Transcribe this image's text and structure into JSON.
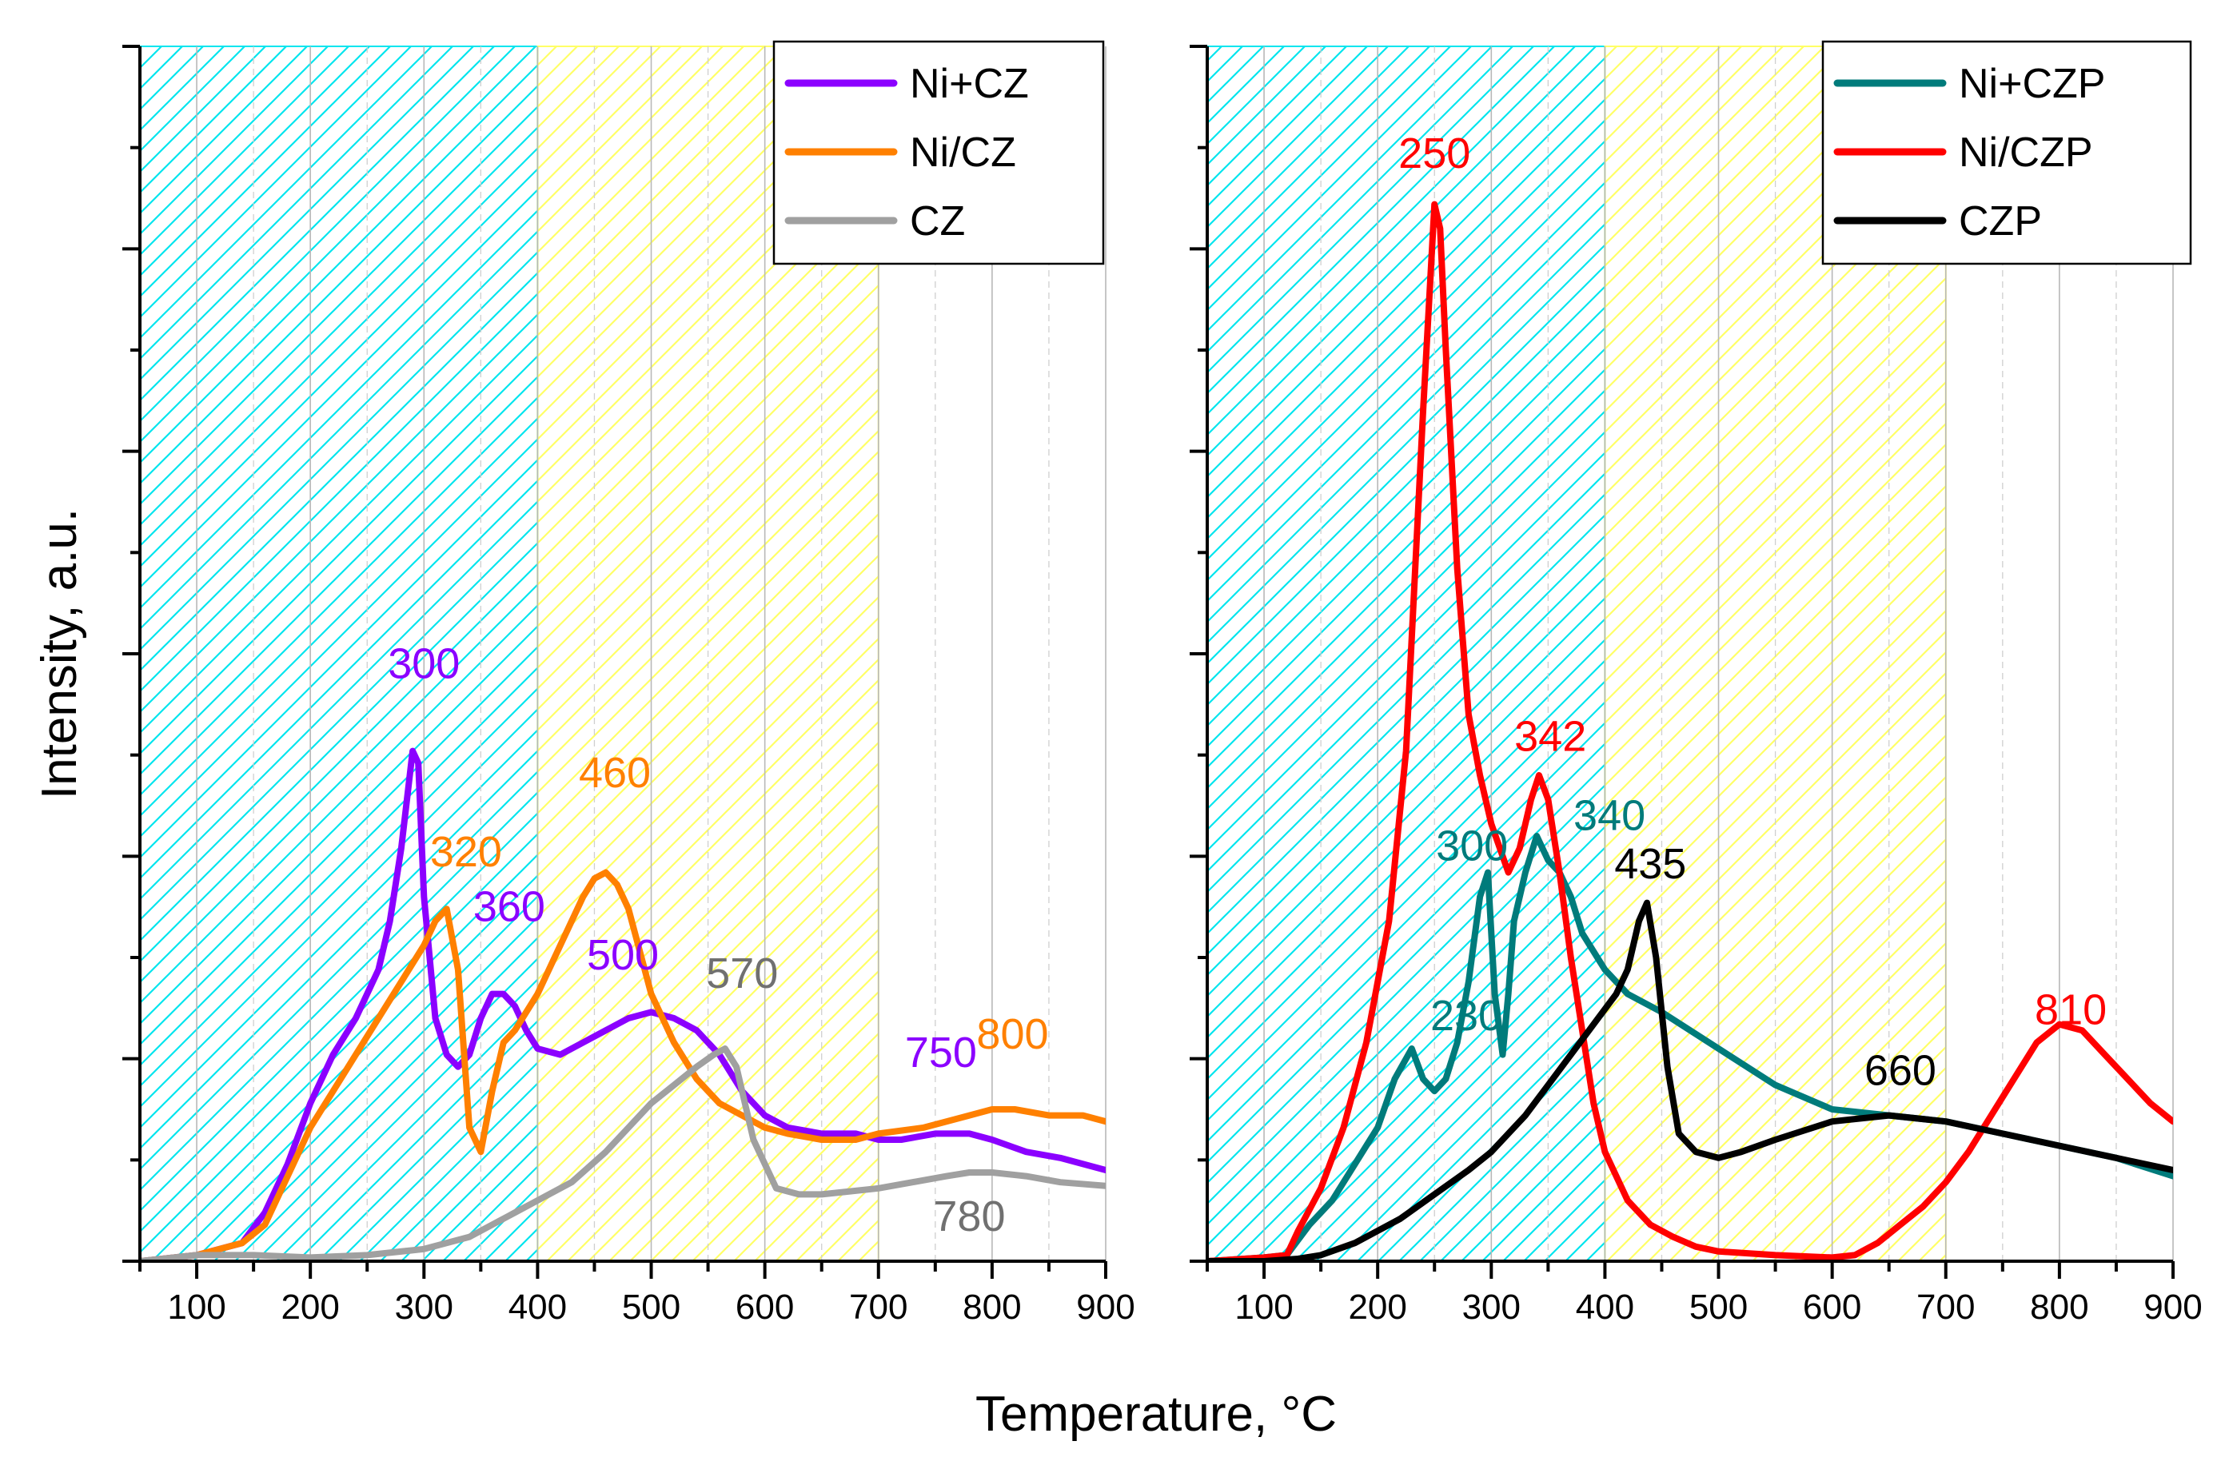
{
  "figure": {
    "xlabel": "Temperature, °C",
    "ylabel": "Intensity, a.u."
  },
  "chart_data": [
    {
      "type": "line",
      "title": "",
      "xlim": [
        50,
        900
      ],
      "xticks": [
        100,
        200,
        300,
        400,
        500,
        600,
        700,
        800,
        900
      ],
      "xtick_labels": [
        "100",
        "200",
        "300",
        "400",
        "500",
        "600",
        "700",
        "800",
        "900"
      ],
      "ylim": [
        0,
        100
      ],
      "grid": true,
      "legend": "top-right",
      "shaded_regions": [
        {
          "x": [
            50,
            400
          ],
          "color": "#00e5ee",
          "pattern": "diagonal-hatch"
        },
        {
          "x": [
            400,
            700
          ],
          "color": "#ffff66",
          "pattern": "diagonal-hatch"
        }
      ],
      "series": [
        {
          "name": "Ni+CZ",
          "color": "#8b00ff",
          "x": [
            50,
            100,
            140,
            160,
            180,
            200,
            220,
            240,
            260,
            270,
            280,
            290,
            295,
            300,
            310,
            320,
            330,
            340,
            350,
            360,
            370,
            380,
            390,
            400,
            420,
            440,
            460,
            480,
            500,
            520,
            540,
            560,
            580,
            600,
            620,
            650,
            680,
            700,
            720,
            750,
            780,
            800,
            830,
            860,
            900
          ],
          "y": [
            0,
            0.5,
            1.5,
            4,
            8,
            13,
            17,
            20,
            24,
            28,
            34,
            42,
            41,
            30,
            20,
            17,
            16,
            17,
            20,
            22,
            22,
            21,
            19,
            17.5,
            17,
            18,
            19,
            20,
            20.5,
            20,
            19,
            17,
            14,
            12,
            11,
            10.5,
            10.5,
            10,
            10,
            10.5,
            10.5,
            10,
            9,
            8.5,
            7.5
          ]
        },
        {
          "name": "Ni/CZ",
          "color": "#ff8000",
          "x": [
            50,
            100,
            140,
            160,
            180,
            200,
            220,
            240,
            260,
            280,
            300,
            310,
            320,
            330,
            340,
            350,
            360,
            370,
            380,
            400,
            420,
            440,
            450,
            460,
            470,
            480,
            500,
            520,
            540,
            560,
            580,
            600,
            620,
            650,
            680,
            700,
            740,
            780,
            800,
            820,
            850,
            880,
            900
          ],
          "y": [
            0,
            0.5,
            1.5,
            3,
            7,
            11,
            14,
            17,
            20,
            23,
            26,
            28,
            29,
            24,
            11,
            9,
            14,
            18,
            19,
            22,
            26,
            30,
            31.5,
            32,
            31,
            29,
            22,
            18,
            15,
            13,
            12,
            11,
            10.5,
            10,
            10,
            10.5,
            11,
            12,
            12.5,
            12.5,
            12,
            12,
            11.5
          ]
        },
        {
          "name": "CZ",
          "color": "#a0a0a0",
          "x": [
            50,
            100,
            150,
            200,
            250,
            300,
            340,
            360,
            380,
            400,
            430,
            460,
            480,
            500,
            520,
            540,
            555,
            565,
            575,
            590,
            610,
            630,
            650,
            670,
            700,
            730,
            760,
            780,
            800,
            830,
            860,
            900
          ],
          "y": [
            0,
            0.5,
            0.5,
            0.3,
            0.5,
            1,
            2,
            3,
            4,
            5,
            6.5,
            9,
            11,
            13,
            14.5,
            16,
            17,
            17.5,
            16,
            10,
            6,
            5.5,
            5.5,
            5.7,
            6,
            6.5,
            7,
            7.3,
            7.3,
            7,
            6.5,
            6.2
          ]
        }
      ],
      "annotations": [
        {
          "text": "300",
          "x": 300,
          "y": 48,
          "color": "#8b00ff"
        },
        {
          "text": "320",
          "x": 337,
          "y": 32.5,
          "color": "#ff8000"
        },
        {
          "text": "360",
          "x": 375,
          "y": 28,
          "color": "#8b00ff"
        },
        {
          "text": "460",
          "x": 468,
          "y": 39,
          "color": "#ff8000"
        },
        {
          "text": "500",
          "x": 475,
          "y": 24,
          "color": "#8b00ff"
        },
        {
          "text": "570",
          "x": 580,
          "y": 22.5,
          "color": "#707070"
        },
        {
          "text": "750",
          "x": 755,
          "y": 16,
          "color": "#8b00ff"
        },
        {
          "text": "800",
          "x": 818,
          "y": 17.5,
          "color": "#ff8000"
        },
        {
          "text": "780",
          "x": 780,
          "y": 2.5,
          "color": "#707070"
        }
      ]
    },
    {
      "type": "line",
      "title": "",
      "xlim": [
        50,
        900
      ],
      "xticks": [
        100,
        200,
        300,
        400,
        500,
        600,
        700,
        800,
        900
      ],
      "xtick_labels": [
        "100",
        "200",
        "300",
        "400",
        "500",
        "600",
        "700",
        "800",
        "900"
      ],
      "ylim": [
        0,
        100
      ],
      "grid": true,
      "legend": "top-right",
      "shaded_regions": [
        {
          "x": [
            50,
            400
          ],
          "color": "#00e5ee",
          "pattern": "diagonal-hatch"
        },
        {
          "x": [
            400,
            700
          ],
          "color": "#ffff66",
          "pattern": "diagonal-hatch"
        }
      ],
      "series": [
        {
          "name": "Ni+CZP",
          "color": "#007b7b",
          "x": [
            50,
            100,
            120,
            140,
            160,
            180,
            200,
            215,
            230,
            240,
            250,
            260,
            270,
            280,
            290,
            297,
            303,
            310,
            315,
            320,
            330,
            340,
            350,
            360,
            370,
            380,
            400,
            420,
            450,
            500,
            550,
            600,
            650,
            700,
            750,
            800,
            850,
            900
          ],
          "y": [
            0,
            0.3,
            0.5,
            3,
            5,
            8,
            11,
            15,
            17.5,
            15,
            14,
            15,
            18,
            23,
            30,
            32,
            22,
            17,
            22,
            28,
            32,
            35,
            33,
            32,
            30,
            27,
            24,
            22,
            20.5,
            17.5,
            14.5,
            12.5,
            12,
            11.5,
            10.5,
            9.5,
            8.5,
            7
          ]
        },
        {
          "name": "Ni/CZP",
          "color": "#ff0000",
          "x": [
            50,
            100,
            120,
            130,
            150,
            170,
            190,
            210,
            225,
            240,
            250,
            255,
            260,
            270,
            280,
            290,
            300,
            315,
            325,
            335,
            342,
            350,
            360,
            370,
            380,
            390,
            400,
            420,
            440,
            460,
            480,
            500,
            550,
            600,
            620,
            640,
            660,
            680,
            700,
            720,
            740,
            760,
            780,
            800,
            820,
            840,
            860,
            880,
            900
          ],
          "y": [
            0,
            0.3,
            0.5,
            2.5,
            6,
            11,
            18,
            28,
            42,
            70,
            87,
            85,
            75,
            57,
            45,
            40,
            36,
            32,
            34,
            38,
            40,
            38,
            32,
            25,
            19,
            13,
            9,
            5,
            3,
            2,
            1.2,
            0.8,
            0.5,
            0.3,
            0.5,
            1.5,
            3,
            4.5,
            6.5,
            9,
            12,
            15,
            18,
            19.5,
            19,
            17,
            15,
            13,
            11.5
          ]
        },
        {
          "name": "CZP",
          "color": "#000000",
          "x": [
            50,
            100,
            130,
            150,
            180,
            200,
            220,
            250,
            280,
            300,
            330,
            350,
            370,
            390,
            410,
            420,
            430,
            437,
            445,
            455,
            465,
            480,
            500,
            520,
            550,
            600,
            650,
            700,
            750,
            800,
            850,
            900
          ],
          "y": [
            0,
            0,
            0.2,
            0.5,
            1.5,
            2.5,
            3.5,
            5.5,
            7.5,
            9,
            12,
            14.5,
            17,
            19.5,
            22,
            24,
            28,
            29.5,
            25,
            16,
            10.5,
            9,
            8.5,
            9,
            10,
            11.5,
            12,
            11.5,
            10.5,
            9.5,
            8.5,
            7.5
          ]
        }
      ],
      "annotations": [
        {
          "text": "250",
          "x": 250,
          "y": 90,
          "color": "#ff0000"
        },
        {
          "text": "300",
          "x": 283,
          "y": 33,
          "color": "#007b7b"
        },
        {
          "text": "342",
          "x": 352,
          "y": 42,
          "color": "#ff0000"
        },
        {
          "text": "340",
          "x": 404,
          "y": 35.5,
          "color": "#007b7b"
        },
        {
          "text": "435",
          "x": 440,
          "y": 31.5,
          "color": "#000000"
        },
        {
          "text": "230",
          "x": 278,
          "y": 19,
          "color": "#007b7b"
        },
        {
          "text": "660",
          "x": 660,
          "y": 14.5,
          "color": "#000000"
        },
        {
          "text": "810",
          "x": 810,
          "y": 19.5,
          "color": "#ff0000"
        }
      ]
    }
  ]
}
